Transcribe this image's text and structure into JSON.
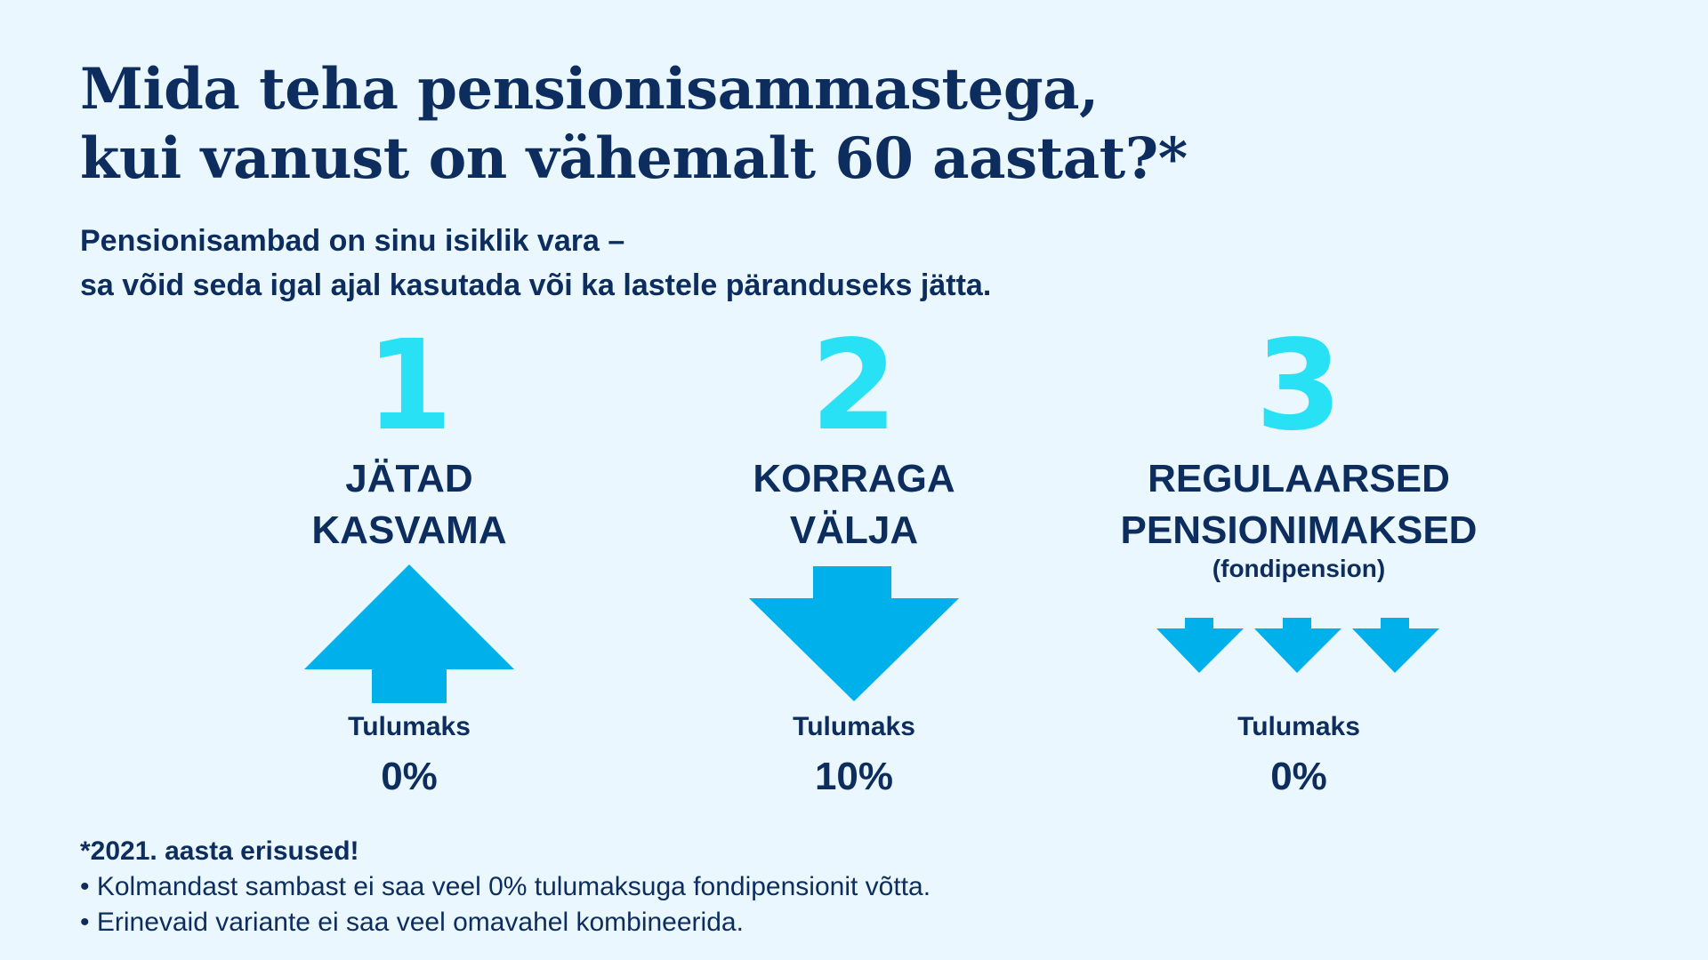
{
  "header": {
    "title_line1": "Mida teha pensionisammastega,",
    "title_line2": "kui vanust on vähemalt 60 aastat?*",
    "subtitle_line1": "Pensionisambad on sinu isiklik vara –",
    "subtitle_line2": "sa võid seda igal ajal kasutada või ka lastele päranduseks jätta."
  },
  "options": [
    {
      "number": "1",
      "title_line1": "JÄTAD",
      "title_line2": "KASVAMA",
      "note": "",
      "arrow": "arrow-up-icon",
      "tax_label": "Tulumaks",
      "tax_value": "0%"
    },
    {
      "number": "2",
      "title_line1": "KORRAGA",
      "title_line2": "VÄLJA",
      "note": "",
      "arrow": "arrow-down-icon",
      "tax_label": "Tulumaks",
      "tax_value": "10%"
    },
    {
      "number": "3",
      "title_line1": "REGULAARSED",
      "title_line2": "PENSIONIMAKSED",
      "note": "(fondipension)",
      "arrow": "three-small-down-arrows-icon",
      "tax_label": "Tulumaks",
      "tax_value": "0%"
    }
  ],
  "footnote": {
    "heading": "*2021. aasta erisused!",
    "items": [
      "• Kolmandast sambast ei saa veel 0% tulumaksuga fondipensionit võtta.",
      "• Erinevaid variante ei saa veel omavahel kombineerida."
    ]
  },
  "colors": {
    "background": "#eaf7fe",
    "text_dark_blue": "#0d2d5e",
    "number_cyan": "#29e1f5",
    "arrow_blue": "#00b0eb"
  }
}
